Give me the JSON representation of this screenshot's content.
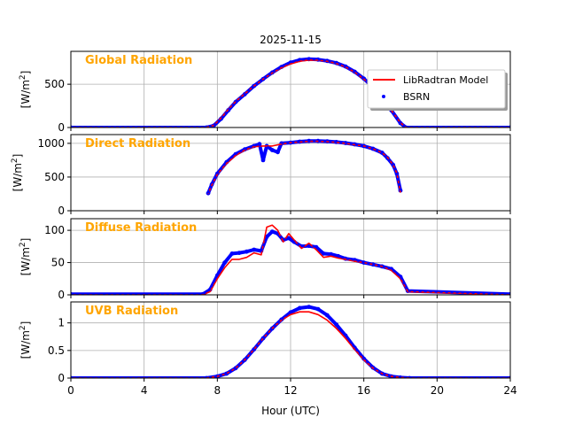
{
  "figure": {
    "title": "2025-11-15",
    "xlabel": "Hour (UTC)",
    "xlim": [
      0,
      24
    ],
    "xticks": [
      0,
      4,
      8,
      12,
      16,
      20,
      24
    ],
    "legend": {
      "placement": "top-right of first panel",
      "model_label": "LibRadtran Model",
      "obs_label": "BSRN"
    },
    "colors": {
      "model": "#ff0000",
      "obs": "#0000ff",
      "panel_label": "#ffa500",
      "grid": "#b0b0b0"
    }
  },
  "chart_data": [
    {
      "type": "line",
      "label": "Global Radiation",
      "ylabel": "[W/m2]",
      "ylim": [
        0,
        880
      ],
      "yticks": [
        0,
        500
      ],
      "series": [
        {
          "name": "LibRadtran Model",
          "x": [
            0,
            7.4,
            7.8,
            8.2,
            8.6,
            9,
            9.5,
            10,
            10.5,
            11,
            11.5,
            12,
            12.5,
            13,
            13.5,
            14,
            14.5,
            15,
            15.5,
            16,
            16.5,
            17,
            17.5,
            18,
            18.3,
            24
          ],
          "y": [
            0,
            0,
            25,
            110,
            210,
            300,
            390,
            480,
            560,
            630,
            690,
            735,
            765,
            780,
            778,
            765,
            740,
            700,
            640,
            560,
            460,
            340,
            200,
            55,
            0,
            0
          ]
        },
        {
          "name": "BSRN",
          "x": [
            0,
            7.4,
            7.8,
            8.2,
            8.6,
            9,
            9.5,
            10,
            10.5,
            11,
            11.5,
            12,
            12.5,
            13,
            13.5,
            14,
            14.5,
            15,
            15.5,
            16,
            16.5,
            17,
            17.5,
            18,
            18.3,
            24
          ],
          "y": [
            0,
            0,
            20,
            100,
            200,
            295,
            385,
            480,
            560,
            635,
            700,
            750,
            780,
            790,
            785,
            770,
            745,
            705,
            645,
            565,
            465,
            345,
            200,
            50,
            0,
            0
          ]
        }
      ]
    },
    {
      "type": "line",
      "label": "Direct Radiation",
      "ylabel": "[W/m2]",
      "ylim": [
        0,
        1130
      ],
      "yticks": [
        0,
        500,
        1000
      ],
      "series": [
        {
          "name": "LibRadtran Model",
          "x": [
            7.5,
            7.7,
            8,
            8.5,
            9,
            9.5,
            10,
            10.5,
            11,
            11.5,
            12,
            12.5,
            13,
            13.5,
            14,
            14.5,
            15,
            15.5,
            16,
            16.5,
            17,
            17.3,
            17.6,
            17.8,
            18
          ],
          "y": [
            250,
            380,
            540,
            700,
            820,
            900,
            950,
            960,
            960,
            990,
            1010,
            1020,
            1030,
            1030,
            1025,
            1015,
            1000,
            980,
            960,
            920,
            860,
            790,
            680,
            560,
            270
          ]
        },
        {
          "name": "BSRN",
          "x": [
            7.5,
            7.7,
            8,
            8.5,
            9,
            9.5,
            10,
            10.3,
            10.5,
            10.7,
            11,
            11.3,
            11.5,
            12,
            12.5,
            13,
            13.5,
            14,
            14.5,
            15,
            15.5,
            16,
            16.5,
            17,
            17.3,
            17.6,
            17.8,
            18
          ],
          "y": [
            260,
            390,
            550,
            720,
            840,
            910,
            960,
            990,
            750,
            960,
            900,
            870,
            1000,
            1010,
            1025,
            1035,
            1035,
            1030,
            1020,
            1005,
            985,
            960,
            920,
            860,
            780,
            680,
            550,
            300
          ]
        }
      ]
    },
    {
      "type": "line",
      "label": "Diffuse Radiation",
      "ylabel": "[W/m2]",
      "ylim": [
        0,
        118
      ],
      "yticks": [
        0,
        50,
        100
      ],
      "series": [
        {
          "name": "LibRadtran Model",
          "x": [
            0,
            7.2,
            7.6,
            8,
            8.4,
            8.8,
            9.2,
            9.6,
            10,
            10.4,
            10.7,
            11,
            11.3,
            11.6,
            11.9,
            12.2,
            12.6,
            13,
            13.4,
            13.8,
            14.2,
            14.6,
            15,
            15.5,
            16,
            16.5,
            17,
            17.5,
            18,
            18.4,
            24
          ],
          "y": [
            0,
            0,
            5,
            25,
            42,
            55,
            55,
            58,
            65,
            62,
            105,
            108,
            100,
            82,
            95,
            85,
            72,
            80,
            70,
            58,
            60,
            57,
            55,
            52,
            50,
            47,
            44,
            38,
            25,
            5,
            0
          ]
        },
        {
          "name": "BSRN",
          "x": [
            0,
            7.2,
            7.6,
            8,
            8.4,
            8.8,
            9.2,
            9.6,
            10,
            10.4,
            10.7,
            11,
            11.3,
            11.6,
            11.9,
            12.2,
            12.6,
            13,
            13.4,
            13.8,
            14.2,
            14.6,
            15,
            15.5,
            16,
            16.5,
            17,
            17.5,
            18,
            18.4,
            24
          ],
          "y": [
            1,
            1,
            8,
            30,
            50,
            64,
            65,
            67,
            70,
            68,
            90,
            98,
            95,
            85,
            88,
            82,
            75,
            76,
            74,
            64,
            63,
            60,
            56,
            54,
            50,
            47,
            44,
            40,
            28,
            6,
            1
          ]
        }
      ]
    },
    {
      "type": "line",
      "label": "UVB Radiation",
      "ylabel": "[W/m2]",
      "ylim": [
        0,
        1.38
      ],
      "yticks": [
        0.0,
        0.5,
        1.0
      ],
      "series": [
        {
          "name": "LibRadtran Model",
          "x": [
            0,
            7.4,
            8,
            8.5,
            9,
            9.5,
            10,
            10.5,
            11,
            11.5,
            12,
            12.5,
            13,
            13.5,
            14,
            14.5,
            15,
            15.5,
            16,
            16.5,
            17,
            17.5,
            18,
            18.5,
            24
          ],
          "y": [
            0,
            0,
            0.03,
            0.08,
            0.18,
            0.33,
            0.52,
            0.72,
            0.9,
            1.05,
            1.15,
            1.2,
            1.2,
            1.15,
            1.05,
            0.9,
            0.72,
            0.52,
            0.33,
            0.18,
            0.08,
            0.03,
            0.01,
            0,
            0
          ]
        },
        {
          "name": "BSRN",
          "x": [
            0,
            7.4,
            8,
            8.5,
            9,
            9.5,
            10,
            10.5,
            11,
            11.5,
            12,
            12.5,
            13,
            13.5,
            14,
            14.5,
            15,
            15.5,
            16,
            16.5,
            17,
            17.5,
            18,
            18.5,
            24
          ],
          "y": [
            0,
            0,
            0.03,
            0.08,
            0.18,
            0.33,
            0.52,
            0.72,
            0.9,
            1.06,
            1.19,
            1.27,
            1.29,
            1.25,
            1.14,
            0.97,
            0.77,
            0.55,
            0.35,
            0.19,
            0.08,
            0.03,
            0.01,
            0,
            0
          ]
        }
      ]
    }
  ]
}
